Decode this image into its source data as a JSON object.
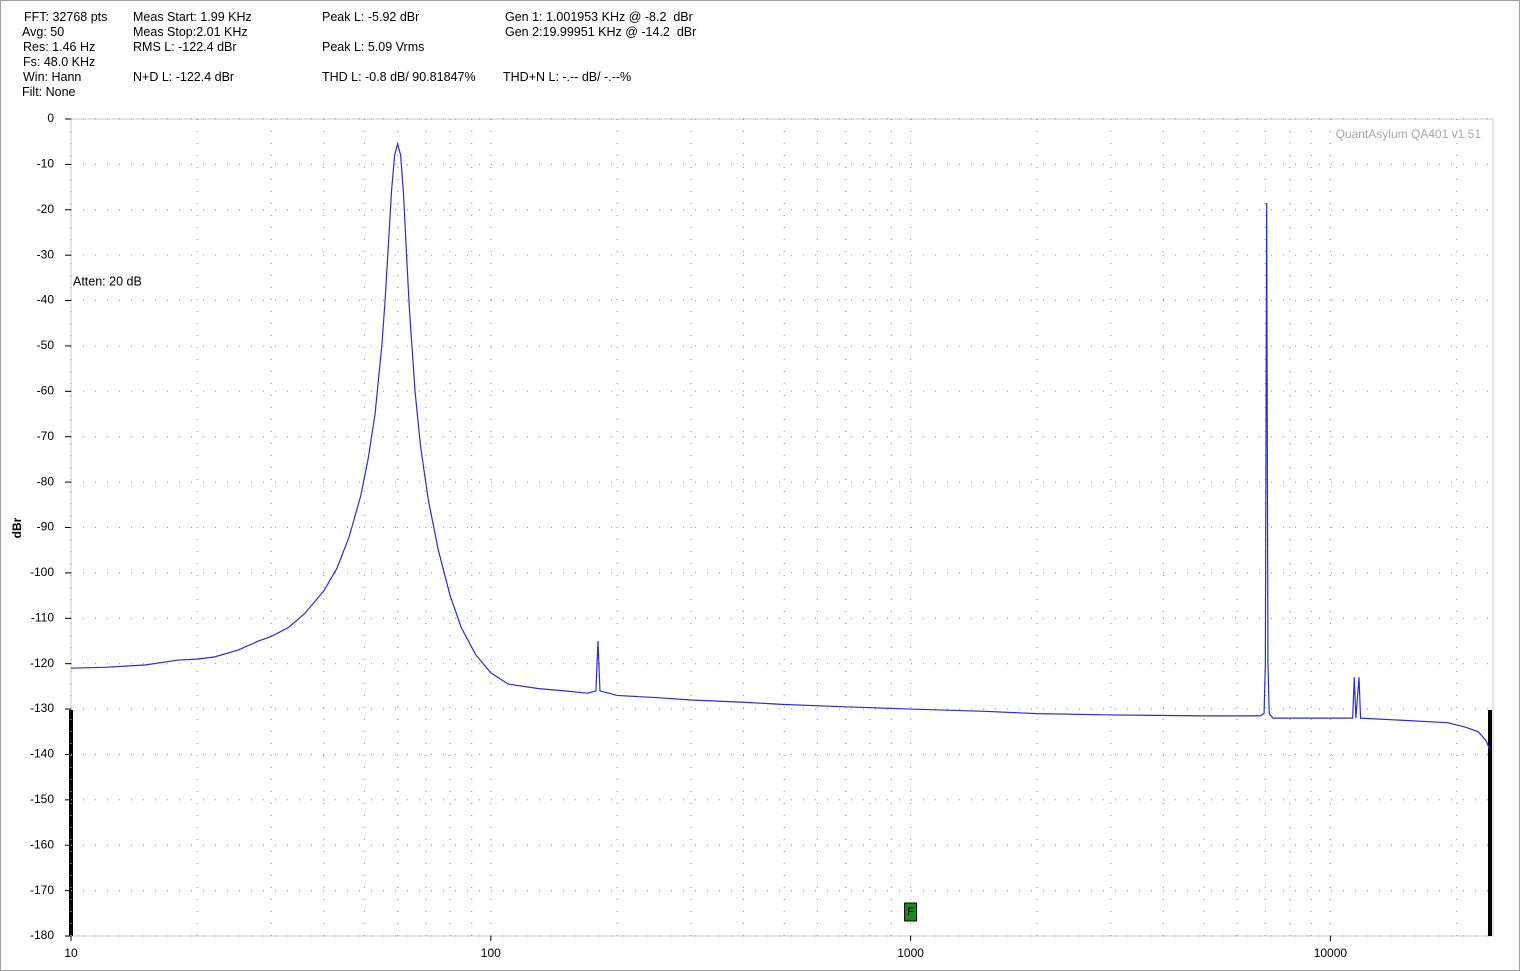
{
  "header": {
    "fft": "FFT: 32768 pts",
    "avg": "Avg: 50",
    "res": "Res: 1.46 Hz",
    "fs": "Fs: 48.0 KHz",
    "win": "Win: Hann",
    "filt": "Filt: None",
    "meas_start": "Meas Start: 1.99 KHz",
    "meas_stop": "Meas Stop:2.01 KHz",
    "rms": "RMS L: -122.4 dBr",
    "nd": "N+D L: -122.4 dBr",
    "peak_dbr": "Peak L: -5.92 dBr",
    "peak_vrms": "Peak L: 5.09 Vrms",
    "thd": "THD L: -0.8 dB/ 90.81847%",
    "gen1": "Gen 1: 1.001953 KHz @ -8.2  dBr",
    "gen2": "Gen 2:19.99951 KHz @ -14.2  dBr",
    "thdn": "THD+N L: -.-- dB/ -.--%"
  },
  "chart_data": {
    "type": "line",
    "y_label": "dBr",
    "annotation": "Atten: 20 dB",
    "watermark": "QuantAsylum QA401 v1.51",
    "marker": {
      "label": "F",
      "x": 1000
    },
    "xlog": true,
    "grid": true,
    "xlim": [
      10,
      24000
    ],
    "ylim": [
      -180,
      0
    ],
    "xticks": [
      10,
      100,
      1000,
      10000
    ],
    "xminorticks": [
      20,
      30,
      40,
      50,
      60,
      70,
      80,
      90,
      200,
      300,
      400,
      500,
      600,
      700,
      800,
      900,
      2000,
      3000,
      4000,
      5000,
      6000,
      7000,
      8000,
      9000,
      20000
    ],
    "yticks": [
      0,
      -10,
      -20,
      -30,
      -40,
      -50,
      -60,
      -70,
      -80,
      -90,
      -100,
      -110,
      -120,
      -130,
      -140,
      -150,
      -160,
      -170,
      -180
    ],
    "x": [
      10,
      12,
      15,
      18,
      20,
      22,
      25,
      28,
      30,
      33,
      36,
      40,
      43,
      46,
      49,
      51,
      53,
      55,
      56,
      57,
      58,
      59,
      60,
      61,
      62,
      63,
      64,
      66,
      68,
      71,
      75,
      80,
      85,
      92,
      100,
      110,
      130,
      150,
      170,
      178,
      180,
      182,
      200,
      250,
      300,
      400,
      500,
      700,
      1000,
      1500,
      2000,
      3000,
      5000,
      6800,
      6950,
      7000,
      7050,
      7100,
      7150,
      7300,
      9000,
      11300,
      11400,
      11500,
      11700,
      11800,
      15000,
      19000,
      21000,
      22500,
      23500,
      24000
    ],
    "series": [
      {
        "color": "#2b2bdc",
        "values": [
          -121,
          -120.8,
          -120.3,
          -119.2,
          -119,
          -118.5,
          -117,
          -115,
          -114,
          -112,
          -109,
          -104,
          -99,
          -92,
          -83,
          -75,
          -65,
          -50,
          -40,
          -28,
          -16,
          -8,
          -5.5,
          -8,
          -17,
          -30,
          -42,
          -60,
          -72,
          -84,
          -95,
          -105,
          -112,
          -118,
          -122,
          -124.5,
          -125.5,
          -126,
          -126.5,
          -126,
          -115,
          -126,
          -127,
          -127.5,
          -128,
          -128.5,
          -129,
          -129.5,
          -130,
          -130.5,
          -131,
          -131.3,
          -131.5,
          -131.5,
          -131,
          -120,
          -18.5,
          -120,
          -131,
          -132,
          -132,
          -132,
          -123,
          -132,
          -123,
          -132,
          -132.5,
          -133,
          -134,
          -135,
          -137,
          -139
        ]
      }
    ]
  }
}
